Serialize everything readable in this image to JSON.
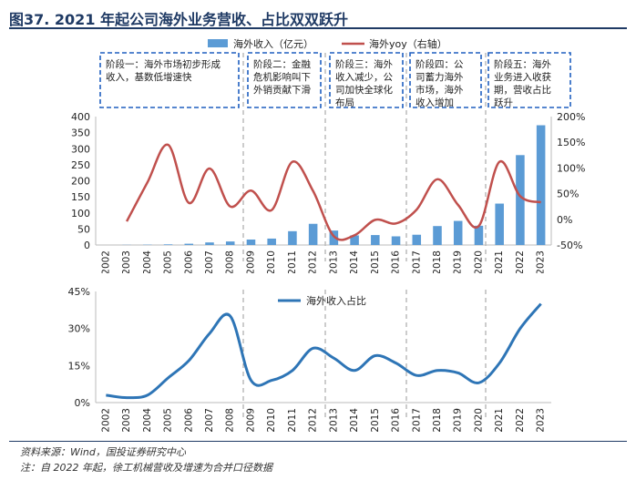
{
  "figure": {
    "title": "图37. 2021 年起公司海外业务营收、占比双双跃升",
    "source": "资料来源：Wind，国投证券研究中心",
    "note": "注：自 2022 年起，徐工机械营收及增速为合并口径数据"
  },
  "colors": {
    "bar": "#5b9bd5",
    "yoy": "#c0504d",
    "share": "#2e75b6",
    "phase_box": "#1f5fbf",
    "divider": "#999999"
  },
  "chart_data": [
    {
      "type": "bar+line",
      "legend": {
        "bar": "海外收入（亿元）",
        "line": "海外yoy（右轴）",
        "placement": "top-center"
      },
      "x": [
        "2002",
        "2003",
        "2004",
        "2005",
        "2006",
        "2007",
        "2008",
        "2009",
        "2010",
        "2011",
        "2012",
        "2013",
        "2014",
        "2015",
        "2016",
        "2017",
        "2018",
        "2019",
        "2020",
        "2021",
        "2022",
        "2023"
      ],
      "bar_values": [
        0,
        0.5,
        1,
        2,
        4,
        8,
        11,
        17,
        20,
        43,
        66,
        45,
        30,
        31,
        27,
        32,
        59,
        75,
        60,
        129,
        280,
        373
      ],
      "yoy_values": [
        null,
        -0.04,
        0.72,
        1.45,
        0.32,
        0.99,
        0.25,
        0.56,
        0.18,
        1.12,
        0.55,
        -0.33,
        -0.31,
        -0.01,
        -0.08,
        0.19,
        0.78,
        0.28,
        -0.13,
        1.12,
        0.45,
        0.33
      ],
      "y_left": {
        "min": 0,
        "max": 400,
        "ticks": [
          0,
          50,
          100,
          150,
          200,
          250,
          300,
          350,
          400
        ]
      },
      "y_right": {
        "min": -0.5,
        "max": 2.0,
        "ticks": [
          "-50%",
          "0%",
          "50%",
          "100%",
          "150%",
          "200%"
        ]
      },
      "phases": [
        {
          "label": "阶段一：海外市场初步形成收入，基数低增速快",
          "start": "2002",
          "end": "2008"
        },
        {
          "label": "阶段二：金融危机影响叫下外销贡献下滑",
          "start": "2009",
          "end": "2012"
        },
        {
          "label": "阶段三：海外收入减少，公司加快全球化布局",
          "start": "2013",
          "end": "2016"
        },
        {
          "label": "阶段四：公司蓄力海外市场，海外收入增加",
          "start": "2017",
          "end": "2020"
        },
        {
          "label": "阶段五：海外业务进入收获期，营收占比跃升",
          "start": "2021",
          "end": "2023"
        }
      ],
      "grid": false
    },
    {
      "type": "line",
      "legend": {
        "line": "海外收入占比",
        "placement": "top-center"
      },
      "x": [
        "2002",
        "2003",
        "2004",
        "2005",
        "2006",
        "2007",
        "2008",
        "2009",
        "2010",
        "2011",
        "2012",
        "2013",
        "2014",
        "2015",
        "2016",
        "2017",
        "2018",
        "2019",
        "2020",
        "2021",
        "2022",
        "2023"
      ],
      "values": [
        0.03,
        0.02,
        0.03,
        0.1,
        0.17,
        0.28,
        0.35,
        0.09,
        0.09,
        0.13,
        0.22,
        0.18,
        0.13,
        0.19,
        0.16,
        0.11,
        0.13,
        0.12,
        0.08,
        0.16,
        0.3,
        0.4
      ],
      "y": {
        "min": 0,
        "max": 0.45,
        "ticks": [
          "0%",
          "15%",
          "30%",
          "45%"
        ]
      },
      "grid": false
    }
  ]
}
